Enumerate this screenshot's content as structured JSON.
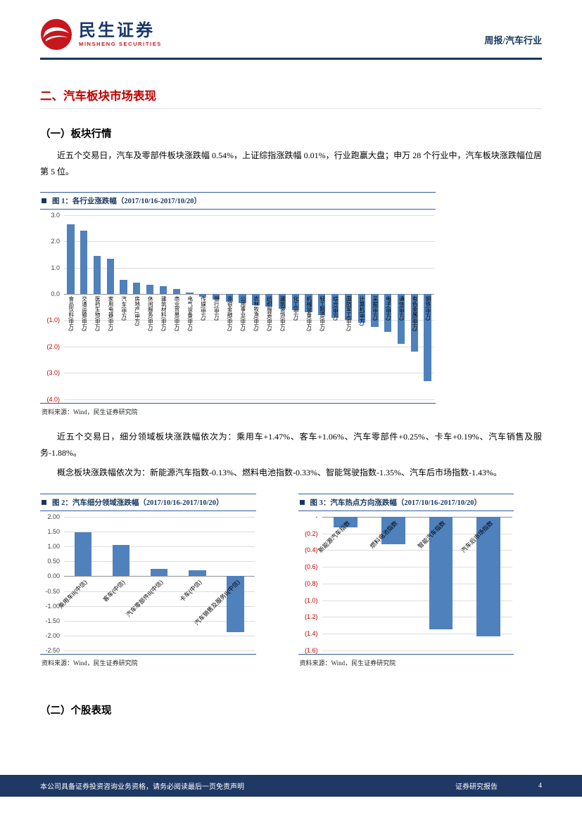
{
  "header": {
    "logo_cn": "民生证券",
    "logo_en": "MINSHENG SECURITIES",
    "report_tag": "周报/汽车行业"
  },
  "section": {
    "title": "二、汽车板块市场表现"
  },
  "sub1": {
    "title": "（一）板块行情"
  },
  "para1": "近五个交易日，汽车及零部件板块涨跌幅 0.54%，上证综指涨跌幅 0.01%，行业跑赢大盘；申万 28 个行业中，汽车板块涨跌幅位居第 5 位。",
  "fig1": {
    "title": "图 1：各行业涨跌幅（2017/10/16-2017/10/20）",
    "source": "资料来源：Wind，民生证券研究院"
  },
  "para2": "近五个交易日，细分领域板块涨跌幅依次为：乘用车+1.47%、客车+1.06%、汽车零部件+0.25%、卡车+0.19%、汽车销售及服务-1.88%。",
  "para3": "概念板块涨跌幅依次为：新能源汽车指数-0.13%、燃料电池指数-0.33%、智能驾驶指数-1.35%、汽车后市场指数-1.43%。",
  "fig2": {
    "title": "图 2：汽车细分领域涨跌幅（2017/10/16-2017/10/20）",
    "source": "资料来源：Wind，民生证券研究院"
  },
  "fig3": {
    "title": "图 3：汽车热点方向涨跌幅（2017/10/16-2017/10/20）",
    "source": "资料来源：Wind，民生证券研究院"
  },
  "sub2": {
    "title": "（二）个股表现"
  },
  "footer": {
    "left": "本公司具备证券投资咨询业务资格，请务必阅读最后一页免责声明",
    "center": "证券研究报告",
    "page": "4"
  },
  "colors": {
    "navy": "#17375e",
    "brand_red": "#c8161d",
    "bar_blue": "#4f81bd",
    "negative_red": "#c00000"
  },
  "chart_data": [
    {
      "type": "bar",
      "title": "各行业涨跌幅（2017/10/16-2017/10/20）",
      "categories": [
        "食品饮料(申万)",
        "交通运输(申万)",
        "医药生物(申万)",
        "家用电器(申万)",
        "汽车(申万)",
        "房地产(申万)",
        "休闲服务(申万)",
        "建筑材料(申万)",
        "商业贸易(申万)",
        "电气设备(申万)",
        "传媒(申万)",
        "银行(申万)",
        "非银金融(申万)",
        "公用事业(申万)",
        "农林牧渔(申万)",
        "纺织服装(申万)",
        "建筑装饰(申万)",
        "化工(申万)",
        "机械设备(申万)",
        "轻工制造(申万)",
        "综合(申万)",
        "国防军工(申万)",
        "计算机(申万)",
        "采掘(申万)",
        "电子(申万)",
        "通信(申万)",
        "有色金属(申万)",
        "钢铁(申万)"
      ],
      "values": [
        2.65,
        2.4,
        1.45,
        1.33,
        0.54,
        0.42,
        0.36,
        0.3,
        0.2,
        0.06,
        -0.1,
        -0.2,
        -0.28,
        -0.35,
        -0.42,
        -0.48,
        -0.55,
        -0.62,
        -0.7,
        -0.8,
        -0.9,
        -1.0,
        -1.1,
        -1.25,
        -1.45,
        -1.9,
        -2.2,
        -3.3
      ],
      "ylim": [
        -4.0,
        3.0
      ],
      "ticks": [
        {
          "v": 3.0,
          "t": "3.0"
        },
        {
          "v": 2.0,
          "t": "2.0"
        },
        {
          "v": 1.0,
          "t": "1.0"
        },
        {
          "v": 0.0,
          "t": "0.0"
        },
        {
          "v": -1.0,
          "t": "(1.0)",
          "neg": true
        },
        {
          "v": -2.0,
          "t": "(2.0)",
          "neg": true
        },
        {
          "v": -3.0,
          "t": "(3.0)",
          "neg": true
        },
        {
          "v": -4.0,
          "t": "(4.0)",
          "neg": true
        }
      ],
      "grid": true,
      "legend": "none",
      "bar_color": "#4f81bd",
      "bar_frac": 0.55,
      "label_mode": "vertical"
    },
    {
      "type": "bar",
      "title": "汽车细分领域涨跌幅（2017/10/16-2017/10/20）",
      "categories": [
        "乘用车II(中信)",
        "客车(中信)",
        "汽车零部件II(中信)",
        "卡车(中信)",
        "汽车销售及服务II(中信)"
      ],
      "values": [
        1.47,
        1.06,
        0.25,
        0.19,
        -1.88
      ],
      "ylim": [
        -2.5,
        2.0
      ],
      "ticks": [
        {
          "v": 2.0,
          "t": "2.00"
        },
        {
          "v": 1.5,
          "t": "1.50"
        },
        {
          "v": 1.0,
          "t": "1.00"
        },
        {
          "v": 0.5,
          "t": "0.50"
        },
        {
          "v": 0.0,
          "t": "0.00"
        },
        {
          "v": -0.5,
          "t": "-0.50"
        },
        {
          "v": -1.0,
          "t": "-1.00"
        },
        {
          "v": -1.5,
          "t": "-1.50"
        },
        {
          "v": -2.0,
          "t": "-2.00"
        },
        {
          "v": -2.5,
          "t": "-2.50"
        }
      ],
      "grid": true,
      "legend": "none",
      "bar_color": "#4f81bd",
      "bar_frac": 0.45,
      "label_mode": "angled"
    },
    {
      "type": "bar",
      "title": "汽车热点方向涨跌幅（2017/10/16-2017/10/20）",
      "categories": [
        "新能源汽车指数",
        "燃料电池指数",
        "智能汽车指数",
        "汽车后市场指数"
      ],
      "values": [
        -0.13,
        -0.33,
        -1.35,
        -1.43
      ],
      "ylim": [
        -1.6,
        0.0
      ],
      "ticks": [
        {
          "v": 0.0,
          "t": "-"
        },
        {
          "v": -0.2,
          "t": "(0.2)",
          "neg": true
        },
        {
          "v": -0.4,
          "t": "(0.4)",
          "neg": true
        },
        {
          "v": -0.6,
          "t": "(0.6)",
          "neg": true
        },
        {
          "v": -0.8,
          "t": "(0.8)",
          "neg": true
        },
        {
          "v": -1.0,
          "t": "(1.0)",
          "neg": true
        },
        {
          "v": -1.2,
          "t": "(1.2)",
          "neg": true
        },
        {
          "v": -1.4,
          "t": "(1.4)",
          "neg": true
        },
        {
          "v": -1.6,
          "t": "(1.6)",
          "neg": true
        }
      ],
      "grid": true,
      "legend": "none",
      "bar_color": "#4f81bd",
      "bar_frac": 0.5,
      "label_mode": "angled"
    }
  ]
}
